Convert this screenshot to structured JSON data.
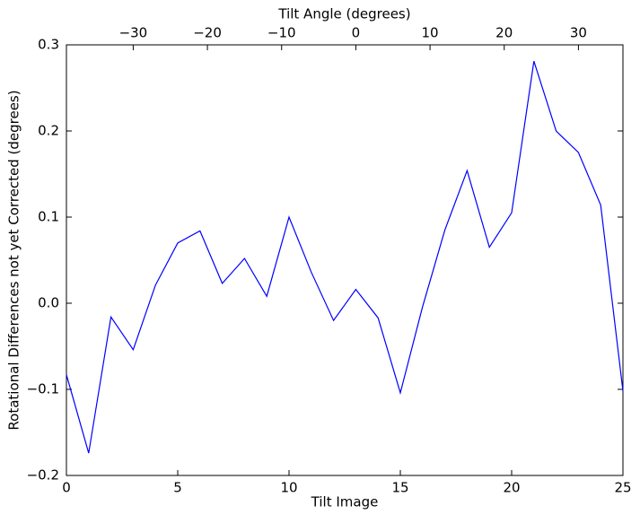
{
  "chart_data": {
    "type": "line",
    "xlabel": "Tilt Image",
    "ylabel": "Rotational Differences not yet Corrected (degrees)",
    "x2label": "Tilt Angle (degrees)",
    "x": [
      0,
      1,
      2,
      3,
      4,
      5,
      6,
      7,
      8,
      9,
      10,
      11,
      12,
      13,
      14,
      15,
      16,
      17,
      18,
      19,
      20,
      21,
      22,
      23,
      24,
      25
    ],
    "series": [
      {
        "name": "Rotational Differences",
        "color": "#0000ff",
        "values": [
          -0.083,
          -0.174,
          -0.016,
          -0.054,
          0.021,
          0.07,
          0.084,
          0.023,
          0.052,
          0.008,
          0.1,
          0.036,
          -0.02,
          0.016,
          -0.017,
          -0.104,
          -0.004,
          0.085,
          0.154,
          0.065,
          0.105,
          0.281,
          0.2,
          0.175,
          0.114,
          -0.102
        ]
      }
    ],
    "xlim": [
      0,
      25
    ],
    "xticks": [
      0,
      5,
      10,
      15,
      20,
      25
    ],
    "ylim": [
      -0.2,
      0.3
    ],
    "yticks": [
      {
        "value": -0.2,
        "label": "−0.2"
      },
      {
        "value": -0.1,
        "label": "−0.1"
      },
      {
        "value": 0,
        "label": "0.0"
      },
      0.1,
      0.2,
      0.3
    ],
    "x2lim": [
      -39,
      36
    ],
    "x2ticks": [
      {
        "value": -30,
        "label": "−30"
      },
      {
        "value": -20,
        "label": "−20"
      },
      {
        "value": -10,
        "label": "−10"
      },
      0,
      10,
      20,
      30
    ]
  }
}
